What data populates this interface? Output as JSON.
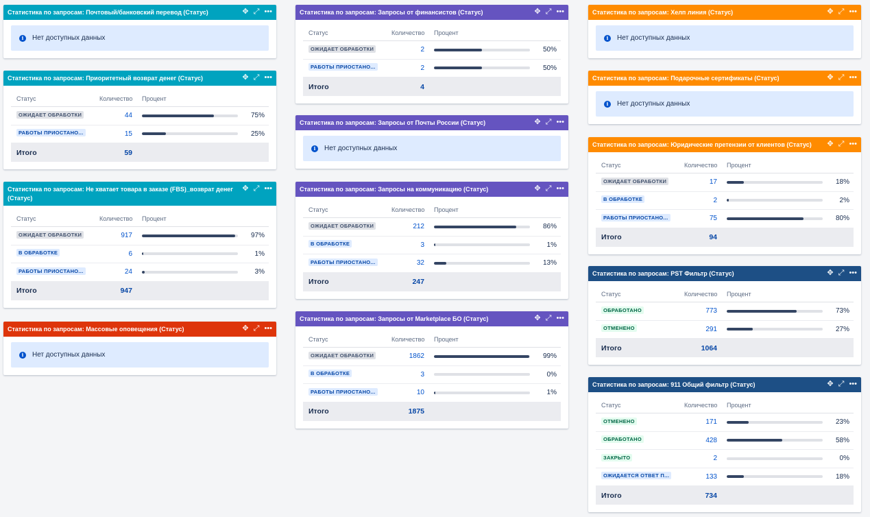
{
  "labels": {
    "status": "Статус",
    "count": "Количество",
    "percent": "Процент",
    "total": "Итого",
    "no_data": "Нет доступных данных"
  },
  "gadgets": [
    {
      "id": "postal",
      "title": "Статистика по запросам: Почтовый/банковский перевод (Статус)",
      "color": "#00a3bf",
      "rows": []
    },
    {
      "id": "priority",
      "title": "Статистика по запросам: Приоритетный возврат денег (Статус)",
      "color": "#00a3bf",
      "rows": [
        {
          "status": "ОЖИДАЕТ ОБРАБОТКИ",
          "count": "44",
          "percent": 75,
          "percent_label": "75%",
          "lozenge": "gray"
        },
        {
          "status": "РАБОТЫ ПРИОСТАНО...",
          "count": "15",
          "percent": 25,
          "percent_label": "25%",
          "lozenge": "blue"
        }
      ],
      "total": "59"
    },
    {
      "id": "fbs",
      "title": "Статистика по запросам: Не хватает товара в заказе (FBS)_возврат денег (Статус)",
      "color": "#00a3bf",
      "rows": [
        {
          "status": "ОЖИДАЕТ ОБРАБОТКИ",
          "count": "917",
          "percent": 97,
          "percent_label": "97%",
          "lozenge": "gray"
        },
        {
          "status": "В ОБРАБОТКЕ",
          "count": "6",
          "percent": 1,
          "percent_label": "1%",
          "lozenge": "blue"
        },
        {
          "status": "РАБОТЫ ПРИОСТАНО...",
          "count": "24",
          "percent": 3,
          "percent_label": "3%",
          "lozenge": "blue"
        }
      ],
      "total": "947"
    },
    {
      "id": "mass",
      "title": "Статистика по запросам: Массовые оповещения (Статус)",
      "color": "#de350b",
      "rows": []
    },
    {
      "id": "financiers",
      "title": "Статистика по запросам: Запросы от финансистов (Статус)",
      "color": "#6554c0",
      "rows": [
        {
          "status": "ОЖИДАЕТ ОБРАБОТКИ",
          "count": "2",
          "percent": 50,
          "percent_label": "50%",
          "lozenge": "gray"
        },
        {
          "status": "РАБОТЫ ПРИОСТАНО...",
          "count": "2",
          "percent": 50,
          "percent_label": "50%",
          "lozenge": "blue"
        }
      ],
      "total": "4"
    },
    {
      "id": "russianpost",
      "title": "Статистика по запросам: Запросы от Почты России (Статус)",
      "color": "#6554c0",
      "rows": []
    },
    {
      "id": "communication",
      "title": "Статистика по запросам: Запросы на коммуникацию (Статус)",
      "color": "#6554c0",
      "rows": [
        {
          "status": "ОЖИДАЕТ ОБРАБОТКИ",
          "count": "212",
          "percent": 86,
          "percent_label": "86%",
          "lozenge": "gray"
        },
        {
          "status": "В ОБРАБОТКЕ",
          "count": "3",
          "percent": 1,
          "percent_label": "1%",
          "lozenge": "blue"
        },
        {
          "status": "РАБОТЫ ПРИОСТАНО...",
          "count": "32",
          "percent": 13,
          "percent_label": "13%",
          "lozenge": "blue"
        }
      ],
      "total": "247"
    },
    {
      "id": "marketplace",
      "title": "Статистика по запросам: Запросы от Marketplace БО (Статус)",
      "color": "#6554c0",
      "rows": [
        {
          "status": "ОЖИДАЕТ ОБРАБОТКИ",
          "count": "1862",
          "percent": 99,
          "percent_label": "99%",
          "lozenge": "gray"
        },
        {
          "status": "В ОБРАБОТКЕ",
          "count": "3",
          "percent": 0,
          "percent_label": "0%",
          "lozenge": "blue"
        },
        {
          "status": "РАБОТЫ ПРИОСТАНО...",
          "count": "10",
          "percent": 1,
          "percent_label": "1%",
          "lozenge": "blue"
        }
      ],
      "total": "1875"
    },
    {
      "id": "helpline",
      "title": "Статистика по запросам: Хелп линия (Статус)",
      "color": "#ff8b00",
      "rows": []
    },
    {
      "id": "giftcards",
      "title": "Статистика по запросам: Подарочные сертификаты (Статус)",
      "color": "#ff8b00",
      "rows": []
    },
    {
      "id": "legal",
      "title": "Статистика по запросам: Юридические претензии от клиентов (Статус)",
      "color": "#ff8b00",
      "rows": [
        {
          "status": "ОЖИДАЕТ ОБРАБОТКИ",
          "count": "17",
          "percent": 18,
          "percent_label": "18%",
          "lozenge": "gray"
        },
        {
          "status": "В ОБРАБОТКЕ",
          "count": "2",
          "percent": 2,
          "percent_label": "2%",
          "lozenge": "blue"
        },
        {
          "status": "РАБОТЫ ПРИОСТАНО...",
          "count": "75",
          "percent": 80,
          "percent_label": "80%",
          "lozenge": "blue"
        }
      ],
      "total": "94"
    },
    {
      "id": "pst",
      "title": "Статистика по запросам: PST Фильтр (Статус)",
      "color": "#1d4f85",
      "rows": [
        {
          "status": "ОБРАБОТАНО",
          "count": "773",
          "percent": 73,
          "percent_label": "73%",
          "lozenge": "green"
        },
        {
          "status": "ОТМЕНЕНО",
          "count": "291",
          "percent": 27,
          "percent_label": "27%",
          "lozenge": "green"
        }
      ],
      "total": "1064"
    },
    {
      "id": "f911",
      "title": "Статистика по запросам: 911 Общий фильтр (Статус)",
      "color": "#1d4f85",
      "rows": [
        {
          "status": "ОТМЕНЕНО",
          "count": "171",
          "percent": 23,
          "percent_label": "23%",
          "lozenge": "green"
        },
        {
          "status": "ОБРАБОТАНО",
          "count": "428",
          "percent": 58,
          "percent_label": "58%",
          "lozenge": "green"
        },
        {
          "status": "ЗАКРЫТО",
          "count": "2",
          "percent": 0,
          "percent_label": "0%",
          "lozenge": "green"
        },
        {
          "status": "ОЖИДАЕТСЯ ОТВЕТ П...",
          "count": "133",
          "percent": 18,
          "percent_label": "18%",
          "lozenge": "blue"
        }
      ],
      "total": "734"
    }
  ],
  "icons": {
    "move": "move-icon",
    "expand": "expand-icon",
    "more": "more-icon"
  }
}
